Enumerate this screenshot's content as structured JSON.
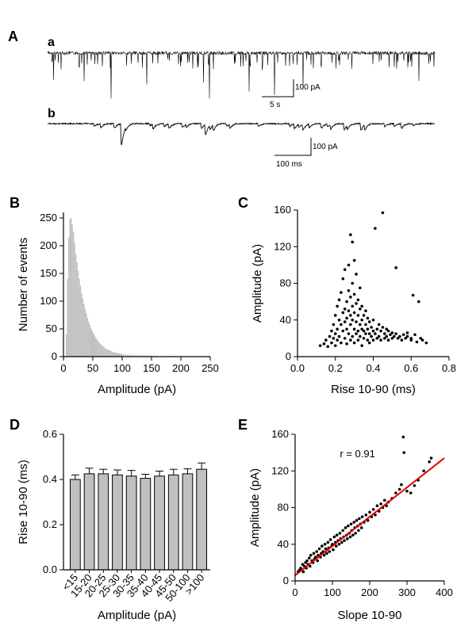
{
  "panel_labels": {
    "A": "A",
    "a": "a",
    "b": "b",
    "B": "B",
    "C": "C",
    "D": "D",
    "E": "E"
  },
  "scalebars": {
    "a_amp": "100 pA",
    "a_time": "5 s",
    "b_amp": "100 pA",
    "b_time": "100 ms"
  },
  "colors": {
    "trace": "#000000",
    "hist_bar": "#c0c0c0",
    "bar_fill": "#c0c0c0",
    "fit_line": "#e00000"
  },
  "chart_data": [
    {
      "id": "A",
      "type": "line",
      "title": "",
      "traces": [
        {
          "name": "a",
          "scale_amplitude": "100 pA",
          "scale_time": "5 s"
        },
        {
          "name": "b",
          "scale_amplitude": "100 pA",
          "scale_time": "100 ms"
        }
      ]
    },
    {
      "id": "B",
      "type": "bar",
      "title": "",
      "xlabel": "Amplitude (pA)",
      "ylabel": "Number of events",
      "xlim": [
        0,
        250
      ],
      "ylim": [
        0,
        260
      ],
      "xticks": [
        "0",
        "50",
        "100",
        "150",
        "200",
        "250"
      ],
      "yticks": [
        "0",
        "50",
        "100",
        "150",
        "200",
        "250"
      ],
      "bin_width": 2,
      "x": [
        5,
        7,
        9,
        11,
        13,
        15,
        17,
        19,
        21,
        23,
        25,
        27,
        29,
        31,
        33,
        35,
        37,
        39,
        41,
        43,
        45,
        47,
        49,
        51,
        53,
        55,
        57,
        59,
        61,
        63,
        65,
        67,
        69,
        71,
        73,
        75,
        77,
        79,
        81,
        83,
        85,
        87,
        89,
        91,
        93,
        95,
        97,
        99,
        102,
        106,
        110,
        114,
        118,
        122,
        126,
        130,
        134,
        138,
        142,
        146,
        150,
        155,
        160,
        170,
        180,
        190,
        200,
        210
      ],
      "values": [
        40,
        140,
        215,
        248,
        250,
        238,
        225,
        205,
        185,
        170,
        155,
        140,
        128,
        115,
        105,
        95,
        86,
        78,
        70,
        63,
        57,
        51,
        46,
        42,
        38,
        34,
        31,
        28,
        25,
        23,
        21,
        19,
        17,
        15,
        14,
        13,
        12,
        11,
        10,
        9,
        8,
        8,
        7,
        7,
        6,
        6,
        5,
        5,
        5,
        4,
        4,
        4,
        3,
        3,
        3,
        3,
        2,
        2,
        2,
        2,
        2,
        2,
        1,
        1,
        1,
        1,
        1,
        1
      ]
    },
    {
      "id": "C",
      "type": "scatter",
      "title": "",
      "xlabel": "Rise 10-90 (ms)",
      "ylabel": "Amplitude (pA)",
      "xlim": [
        0,
        0.8
      ],
      "ylim": [
        0,
        160
      ],
      "xticks": [
        "0.0",
        "0.2",
        "0.4",
        "0.6",
        "0.8"
      ],
      "yticks": [
        "0",
        "40",
        "80",
        "120",
        "160"
      ],
      "points": [
        [
          0.12,
          12
        ],
        [
          0.14,
          14
        ],
        [
          0.15,
          18
        ],
        [
          0.16,
          11
        ],
        [
          0.17,
          22
        ],
        [
          0.18,
          15
        ],
        [
          0.18,
          28
        ],
        [
          0.19,
          35
        ],
        [
          0.19,
          20
        ],
        [
          0.2,
          12
        ],
        [
          0.2,
          45
        ],
        [
          0.2,
          25
        ],
        [
          0.21,
          30
        ],
        [
          0.21,
          55
        ],
        [
          0.21,
          18
        ],
        [
          0.22,
          40
        ],
        [
          0.22,
          62
        ],
        [
          0.22,
          22
        ],
        [
          0.23,
          35
        ],
        [
          0.23,
          70
        ],
        [
          0.23,
          15
        ],
        [
          0.24,
          48
        ],
        [
          0.24,
          28
        ],
        [
          0.24,
          85
        ],
        [
          0.25,
          38
        ],
        [
          0.25,
          52
        ],
        [
          0.25,
          20
        ],
        [
          0.25,
          95
        ],
        [
          0.26,
          42
        ],
        [
          0.26,
          60
        ],
        [
          0.26,
          30
        ],
        [
          0.26,
          14
        ],
        [
          0.27,
          50
        ],
        [
          0.27,
          72
        ],
        [
          0.27,
          25
        ],
        [
          0.27,
          100
        ],
        [
          0.28,
          45
        ],
        [
          0.28,
          35
        ],
        [
          0.28,
          65
        ],
        [
          0.28,
          18
        ],
        [
          0.28,
          133
        ],
        [
          0.29,
          55
        ],
        [
          0.29,
          40
        ],
        [
          0.29,
          80
        ],
        [
          0.29,
          22
        ],
        [
          0.29,
          125
        ],
        [
          0.3,
          48
        ],
        [
          0.3,
          30
        ],
        [
          0.3,
          68
        ],
        [
          0.3,
          105
        ],
        [
          0.3,
          15
        ],
        [
          0.31,
          38
        ],
        [
          0.31,
          58
        ],
        [
          0.31,
          25
        ],
        [
          0.31,
          90
        ],
        [
          0.32,
          45
        ],
        [
          0.32,
          28
        ],
        [
          0.32,
          62
        ],
        [
          0.32,
          18
        ],
        [
          0.33,
          35
        ],
        [
          0.33,
          52
        ],
        [
          0.33,
          75
        ],
        [
          0.33,
          22
        ],
        [
          0.34,
          40
        ],
        [
          0.34,
          30
        ],
        [
          0.34,
          55
        ],
        [
          0.34,
          12
        ],
        [
          0.35,
          28
        ],
        [
          0.35,
          45
        ],
        [
          0.35,
          20
        ],
        [
          0.36,
          35
        ],
        [
          0.36,
          25
        ],
        [
          0.36,
          50
        ],
        [
          0.37,
          30
        ],
        [
          0.37,
          18
        ],
        [
          0.37,
          42
        ],
        [
          0.38,
          25
        ],
        [
          0.38,
          38
        ],
        [
          0.38,
          15
        ],
        [
          0.39,
          32
        ],
        [
          0.39,
          22
        ],
        [
          0.4,
          28
        ],
        [
          0.4,
          40
        ],
        [
          0.4,
          18
        ],
        [
          0.41,
          140
        ],
        [
          0.41,
          25
        ],
        [
          0.42,
          30
        ],
        [
          0.42,
          20
        ],
        [
          0.43,
          35
        ],
        [
          0.43,
          22
        ],
        [
          0.44,
          28
        ],
        [
          0.44,
          18
        ],
        [
          0.45,
          157
        ],
        [
          0.45,
          32
        ],
        [
          0.46,
          25
        ],
        [
          0.46,
          20
        ],
        [
          0.47,
          30
        ],
        [
          0.47,
          22
        ],
        [
          0.48,
          28
        ],
        [
          0.48,
          18
        ],
        [
          0.49,
          24
        ],
        [
          0.5,
          26
        ],
        [
          0.5,
          20
        ],
        [
          0.51,
          22
        ],
        [
          0.52,
          97
        ],
        [
          0.52,
          25
        ],
        [
          0.53,
          20
        ],
        [
          0.54,
          22
        ],
        [
          0.55,
          18
        ],
        [
          0.56,
          24
        ],
        [
          0.57,
          20
        ],
        [
          0.58,
          22
        ],
        [
          0.58,
          26
        ],
        [
          0.6,
          18
        ],
        [
          0.6,
          20
        ],
        [
          0.61,
          67
        ],
        [
          0.62,
          24
        ],
        [
          0.63,
          16
        ],
        [
          0.64,
          60
        ],
        [
          0.65,
          20
        ],
        [
          0.66,
          18
        ],
        [
          0.68,
          15
        ]
      ]
    },
    {
      "id": "D",
      "type": "bar",
      "title": "",
      "xlabel": "Amplitude (pA)",
      "ylabel": "Rise 10-90 (ms)",
      "ylim": [
        0,
        0.6
      ],
      "yticks": [
        "0.0",
        "0.2",
        "0.4",
        "0.6"
      ],
      "categories": [
        "<15",
        "15-20",
        "20-25",
        "25-30",
        "30-35",
        "35-40",
        "40-45",
        "45-50",
        "50-100",
        ">100"
      ],
      "values": [
        0.4,
        0.425,
        0.425,
        0.42,
        0.415,
        0.405,
        0.415,
        0.42,
        0.425,
        0.445
      ],
      "errors": [
        0.02,
        0.025,
        0.02,
        0.022,
        0.025,
        0.018,
        0.022,
        0.025,
        0.022,
        0.028
      ]
    },
    {
      "id": "E",
      "type": "scatter",
      "title": "",
      "xlabel": "Slope 10-90",
      "ylabel": "Amplitude (pA)",
      "xlim": [
        0,
        400
      ],
      "ylim": [
        0,
        160
      ],
      "xticks": [
        "0",
        "100",
        "200",
        "300",
        "400"
      ],
      "yticks": [
        "0",
        "40",
        "80",
        "120",
        "160"
      ],
      "annotation": "r = 0.91",
      "fit": {
        "slope": 0.32,
        "intercept": 6
      },
      "points": [
        [
          8,
          10
        ],
        [
          12,
          12
        ],
        [
          15,
          14
        ],
        [
          18,
          12
        ],
        [
          20,
          18
        ],
        [
          22,
          10
        ],
        [
          25,
          16
        ],
        [
          28,
          20
        ],
        [
          30,
          14
        ],
        [
          32,
          22
        ],
        [
          35,
          18
        ],
        [
          38,
          25
        ],
        [
          40,
          16
        ],
        [
          42,
          28
        ],
        [
          45,
          22
        ],
        [
          48,
          20
        ],
        [
          50,
          30
        ],
        [
          52,
          24
        ],
        [
          55,
          26
        ],
        [
          58,
          32
        ],
        [
          60,
          22
        ],
        [
          62,
          28
        ],
        [
          65,
          35
        ],
        [
          68,
          26
        ],
        [
          70,
          30
        ],
        [
          72,
          38
        ],
        [
          75,
          32
        ],
        [
          78,
          28
        ],
        [
          80,
          40
        ],
        [
          82,
          35
        ],
        [
          85,
          30
        ],
        [
          88,
          42
        ],
        [
          90,
          36
        ],
        [
          92,
          32
        ],
        [
          95,
          45
        ],
        [
          98,
          38
        ],
        [
          100,
          40
        ],
        [
          102,
          34
        ],
        [
          105,
          48
        ],
        [
          108,
          42
        ],
        [
          110,
          38
        ],
        [
          112,
          50
        ],
        [
          115,
          44
        ],
        [
          118,
          40
        ],
        [
          120,
          52
        ],
        [
          122,
          46
        ],
        [
          125,
          42
        ],
        [
          128,
          55
        ],
        [
          130,
          48
        ],
        [
          132,
          44
        ],
        [
          135,
          58
        ],
        [
          138,
          50
        ],
        [
          140,
          46
        ],
        [
          142,
          60
        ],
        [
          145,
          52
        ],
        [
          148,
          48
        ],
        [
          150,
          62
        ],
        [
          152,
          55
        ],
        [
          155,
          50
        ],
        [
          158,
          64
        ],
        [
          160,
          58
        ],
        [
          162,
          52
        ],
        [
          165,
          66
        ],
        [
          168,
          60
        ],
        [
          170,
          55
        ],
        [
          172,
          68
        ],
        [
          175,
          62
        ],
        [
          178,
          58
        ],
        [
          180,
          70
        ],
        [
          185,
          64
        ],
        [
          190,
          72
        ],
        [
          195,
          66
        ],
        [
          200,
          75
        ],
        [
          205,
          70
        ],
        [
          210,
          78
        ],
        [
          215,
          72
        ],
        [
          220,
          82
        ],
        [
          225,
          76
        ],
        [
          230,
          84
        ],
        [
          235,
          80
        ],
        [
          240,
          88
        ],
        [
          245,
          82
        ],
        [
          250,
          86
        ],
        [
          260,
          90
        ],
        [
          270,
          96
        ],
        [
          280,
          100
        ],
        [
          285,
          105
        ],
        [
          290,
          157
        ],
        [
          292,
          140
        ],
        [
          300,
          98
        ],
        [
          310,
          96
        ],
        [
          320,
          104
        ],
        [
          330,
          110
        ],
        [
          345,
          120
        ],
        [
          360,
          130
        ],
        [
          365,
          134
        ]
      ]
    }
  ]
}
